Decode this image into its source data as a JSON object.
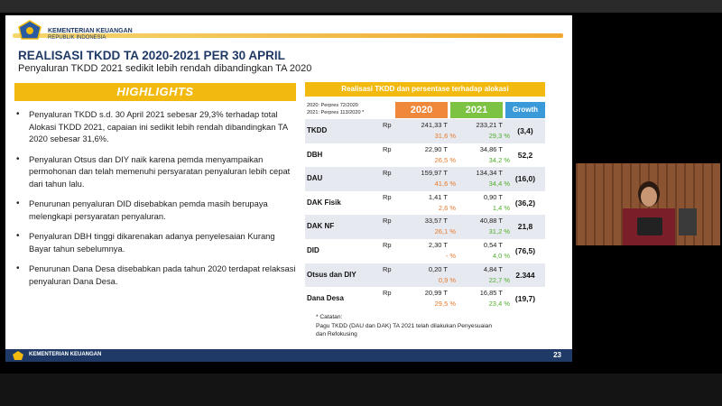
{
  "header": {
    "org_name": "KEMENTERIAN KEUANGAN",
    "org_sub": "REPUBLIK INDONESIA",
    "title": "REALISASI TKDD TA 2020-2021 PER 30 APRIL",
    "subtitle": "Penyaluran TKDD 2021 sedikit lebih rendah dibandingkan TA 2020"
  },
  "highlights": {
    "title": "HIGHLIGHTS",
    "bullets": [
      "Penyaluran TKDD s.d. 30 April 2021 sebesar 29,3% terhadap total Alokasi TKDD 2021, capaian ini sedikit lebih rendah dibandingkan TA 2020 sebesar 31,6%.",
      "Penyaluran Otsus dan DIY naik karena pemda menyampaikan permohonan dan telah memenuhi persyaratan penyaluran lebih cepat dari tahun lalu.",
      "Penurunan penyaluran DID disebabkan pemda masih berupaya melengkapi persyaratan penyaluran.",
      "Penyaluran DBH tinggi dikarenakan adanya penyelesaian Kurang Bayar tahun sebelumnya.",
      "Penurunan Dana Desa disebabkan pada tahun 2020 terdapat relaksasi penyaluran Dana Desa."
    ]
  },
  "table": {
    "title": "Realisasi TKDD dan persentase terhadap alokasi",
    "perpres_2020": "2020: Perpres 72/2020",
    "perpres_2021": "2021: Perpres 113/2020",
    "perpres_mark": "*",
    "col_2020": "2020",
    "col_2021": "2021",
    "col_growth": "Growth",
    "rows": [
      {
        "name": "TKDD",
        "rp": "Rp",
        "v2020": "241,33  T",
        "v2021": "233,21  T",
        "p2020": "31,6  %",
        "p2021": "29,3  %",
        "growth": "(3,4)"
      },
      {
        "name": "DBH",
        "rp": "Rp",
        "v2020": "22,90  T",
        "v2021": "34,86  T",
        "p2020": "26,5  %",
        "p2021": "34,2  %",
        "growth": "52,2"
      },
      {
        "name": "DAU",
        "rp": "Rp",
        "v2020": "159,97  T",
        "v2021": "134,34  T",
        "p2020": "41,6  %",
        "p2021": "34,4  %",
        "growth": "(16,0)"
      },
      {
        "name": "DAK Fisik",
        "rp": "Rp",
        "v2020": "1,41  T",
        "v2021": "0,90  T",
        "p2020": "2,6  %",
        "p2021": "1,4  %",
        "growth": "(36,2)"
      },
      {
        "name": "DAK NF",
        "rp": "Rp",
        "v2020": "33,57  T",
        "v2021": "40,88  T",
        "p2020": "26,1  %",
        "p2021": "31,2  %",
        "growth": "21,8"
      },
      {
        "name": "DID",
        "rp": "Rp",
        "v2020": "2,30  T",
        "v2021": "0,54  T",
        "p2020": "-  %",
        "p2021": "4,0  %",
        "growth": "(76,5)"
      },
      {
        "name": "Otsus dan DIY",
        "rp": "Rp",
        "v2020": "0,20  T",
        "v2021": "4,84  T",
        "p2020": "0,9  %",
        "p2021": "22,7  %",
        "growth": "2.344"
      },
      {
        "name": "Dana Desa",
        "rp": "Rp",
        "v2020": "20,99  T",
        "v2021": "16,85  T",
        "p2020": "29,5  %",
        "p2021": "23,4  %",
        "growth": "(19,7)"
      }
    ],
    "note_title": "* Catatan:",
    "note_text_1": "Pagu TKDD (DAU dan DAK) TA 2021 telah dilakukan Penyesuaian",
    "note_text_2": "dan Refokusing"
  },
  "footer": {
    "org_name": "KEMENTERIAN KEUANGAN",
    "page_number": "23"
  },
  "colors": {
    "accent_yellow": "#f2b90f",
    "col_2020": "#f0883c",
    "col_2021": "#7cc243",
    "col_growth": "#3a9ad9",
    "navy": "#1f3a66"
  }
}
